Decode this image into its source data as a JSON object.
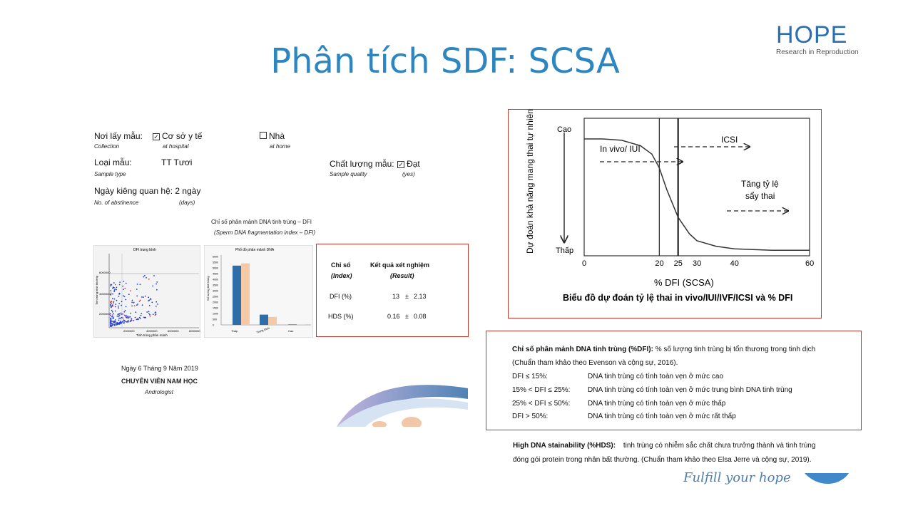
{
  "title": "Phân tích SDF: SCSA",
  "logo": {
    "word": "HOPE",
    "subtitle": "Research in Reproduction"
  },
  "form": {
    "collection_label": "Nơi lấy mẫu:",
    "collection_en": "Collection",
    "hospital_label": "Cơ sở y tế",
    "hospital_en": "at hospital",
    "home_label": "Nhà",
    "home_en": "at home",
    "sample_type_label": "Loại mẫu:",
    "sample_type_en": "Sample type",
    "sample_type_value": "TT Tươi",
    "quality_label": "Chất lượng mẫu:",
    "quality_value": "Đạt",
    "quality_en": "Sample quality",
    "quality_value_en": "(yes)",
    "abstinence_label": "Ngày kiêng quan hệ: 2 ngày",
    "abstinence_en": "No. of abstinence",
    "abstinence_unit_en": "(days)",
    "dfi_title": "Chỉ số phân mảnh DNA tinh trùng – DFI",
    "dfi_title_en": "(Sperm DNA fragmentation index – DFI)"
  },
  "results": {
    "col1": "Chỉ số",
    "col1_en": "(Index)",
    "col2": "Kết quả xét nghiệm",
    "col2_en": "(Result)",
    "rows": [
      {
        "name": "DFI (%)",
        "value": "13",
        "pm": "±",
        "sd": "2.13"
      },
      {
        "name": "HDS (%)",
        "value": "0.16",
        "pm": "±",
        "sd": "0.08"
      }
    ]
  },
  "signature": {
    "date": "Ngày 6 Tháng 9 Năm 2019",
    "role": "CHUYÊN VIÊN NAM HỌC",
    "role_en": "Andrologist"
  },
  "scatter": {
    "title": "DFI trung bình",
    "xlabel": "Tinh trùng phân mảnh",
    "ylabel": "Tinh trùng bình thường",
    "xticks": [
      "2000000",
      "4000000",
      "6000000",
      "8000000"
    ],
    "yticks": [
      "2000000",
      "4000000",
      "6000000"
    ]
  },
  "bar": {
    "title": "Phổ đồ phân mảnh DNA",
    "ylabel": "Số lượng tinh trùng",
    "yticks": [
      "0",
      "500",
      "1000",
      "1500",
      "2000",
      "2500",
      "3000",
      "3500",
      "4000",
      "4500",
      "5000",
      "5500",
      "6000"
    ],
    "cats": [
      "Thấp",
      "Trung bình",
      "Cao"
    ]
  },
  "chart_data": {
    "type": "line",
    "title": "Biểu đồ dự đoán tỷ lệ thai in vivo/IUI/IVF/ICSI và % DFI",
    "xlabel": "% DFI (SCSA)",
    "ylabel": "Dự đoán khả năng mang thai tự nhiên/IUI",
    "xticks": [
      0,
      20,
      25,
      30,
      40,
      60
    ],
    "xlim": [
      0,
      60
    ],
    "y_high": "Cao",
    "y_low": "Thấp",
    "annotations": [
      "In vivo/ IUI",
      "ICSI",
      "Tăng tỷ lệ",
      "sẩy thai"
    ],
    "x": [
      0,
      5,
      10,
      15,
      18,
      20,
      22,
      25,
      28,
      30,
      35,
      40,
      50,
      60
    ],
    "y": [
      0.85,
      0.85,
      0.84,
      0.8,
      0.74,
      0.64,
      0.48,
      0.28,
      0.16,
      0.11,
      0.07,
      0.05,
      0.04,
      0.04
    ]
  },
  "legend": {
    "dfi_head": "Chỉ số phân mảnh DNA tinh trùng (%DFI):",
    "dfi_desc": "% số lượng tinh trùng bị tổn thương trong tinh dịch",
    "dfi_ref": "(Chuẩn tham khảo theo Evenson và cộng sự, 2016).",
    "rows": [
      {
        "range": "DFI ≤ 15%:",
        "desc": "DNA tinh trùng có tính toàn vẹn ở mức cao"
      },
      {
        "range": "15% < DFI ≤ 25%:",
        "desc": "DNA tinh trùng có tính toàn vẹn ở mức trung bình DNA tinh trùng"
      },
      {
        "range": "25% < DFI ≤ 50%:",
        "desc": "DNA tinh trùng có tính toàn vẹn ở mức thấp"
      },
      {
        "range": "DFI > 50%:",
        "desc": "DNA tinh trùng có tính toàn vẹn ở mức rất thấp"
      }
    ],
    "hds_head": "High DNA stainability (%HDS):",
    "hds_desc": "tinh trùng có nhiễm sắc chất chưa trưởng thành và tinh trùng",
    "hds_desc2": "đóng gói protein trong nhân bất thường. (Chuẩn tham khảo theo Elsa Jerre và cộng sự, 2019)."
  },
  "footer": {
    "slogan": "Fulfill your hope"
  },
  "colors": {
    "title": "#2e86c1",
    "box": "#c0392b",
    "bar1": "#2f6da8",
    "bar2": "#f6c9a6"
  }
}
